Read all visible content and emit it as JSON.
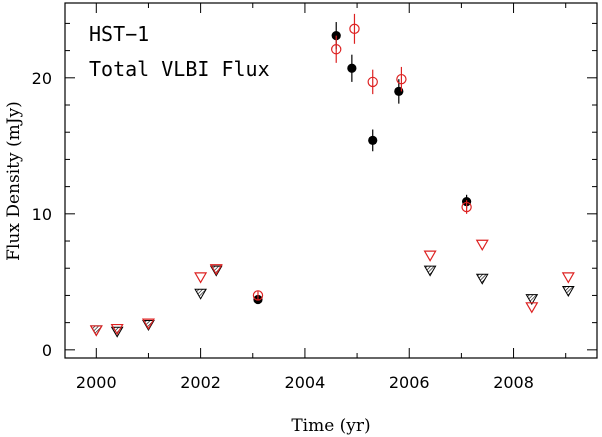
{
  "chart_data": {
    "type": "scatter",
    "annotations": [
      "HST−1",
      "Total VLBI Flux"
    ],
    "xlabel": "Time (yr)",
    "ylabel": "Flux Density (mJy)",
    "xlim": [
      1999.4,
      2009.6
    ],
    "ylim": [
      -0.6,
      25.5
    ],
    "x_ticks": [
      2000,
      2002,
      2004,
      2006,
      2008
    ],
    "y_ticks": [
      0,
      10,
      20
    ],
    "grid": false,
    "colors": {
      "black": "#000000",
      "red": "#dd2222"
    },
    "series": [
      {
        "marker": "filled-circle",
        "color": "#000000",
        "points": [
          {
            "x": 2003.1,
            "y": 3.7,
            "err": 0.3
          },
          {
            "x": 2004.6,
            "y": 23.1,
            "err": 1.0
          },
          {
            "x": 2004.9,
            "y": 20.7,
            "err": 1.0
          },
          {
            "x": 2005.3,
            "y": 15.4,
            "err": 0.8
          },
          {
            "x": 2005.8,
            "y": 19.0,
            "err": 0.9
          },
          {
            "x": 2007.1,
            "y": 10.9,
            "err": 0.5
          }
        ]
      },
      {
        "marker": "open-circle",
        "color": "#dd2222",
        "points": [
          {
            "x": 2003.1,
            "y": 4.0,
            "err": 0.3
          },
          {
            "x": 2004.6,
            "y": 22.1,
            "err": 1.0
          },
          {
            "x": 2004.95,
            "y": 23.6,
            "err": 1.1
          },
          {
            "x": 2005.3,
            "y": 19.7,
            "err": 0.9
          },
          {
            "x": 2005.85,
            "y": 19.9,
            "err": 0.9
          },
          {
            "x": 2007.1,
            "y": 10.5,
            "err": 0.5
          }
        ]
      },
      {
        "marker": "hatched-triangle",
        "color": "#000000",
        "points": [
          {
            "x": 2000.0,
            "y": 1.5
          },
          {
            "x": 2000.4,
            "y": 1.4
          },
          {
            "x": 2001.0,
            "y": 1.9
          },
          {
            "x": 2002.0,
            "y": 4.2
          },
          {
            "x": 2002.3,
            "y": 5.9
          },
          {
            "x": 2006.4,
            "y": 5.9
          },
          {
            "x": 2007.4,
            "y": 5.3
          },
          {
            "x": 2008.35,
            "y": 3.8
          },
          {
            "x": 2009.05,
            "y": 4.4
          }
        ]
      },
      {
        "marker": "open-triangle",
        "color": "#dd2222",
        "points": [
          {
            "x": 2000.0,
            "y": 1.5
          },
          {
            "x": 2000.4,
            "y": 1.6
          },
          {
            "x": 2001.0,
            "y": 2.0
          },
          {
            "x": 2002.0,
            "y": 5.4
          },
          {
            "x": 2002.3,
            "y": 6.0
          },
          {
            "x": 2006.4,
            "y": 7.0
          },
          {
            "x": 2007.4,
            "y": 7.8
          },
          {
            "x": 2008.35,
            "y": 3.2
          },
          {
            "x": 2009.05,
            "y": 5.4
          }
        ]
      }
    ]
  }
}
